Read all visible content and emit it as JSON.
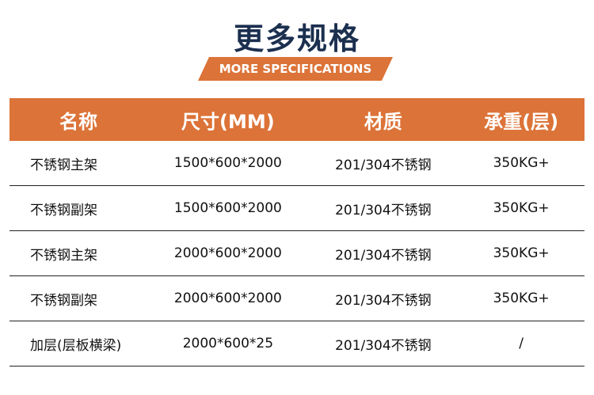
{
  "header": {
    "title": "更多规格",
    "subtitle": "MORE SPECIFICATIONS"
  },
  "table": {
    "columns": [
      "名称",
      "尺寸(MM)",
      "材质",
      "承重(层)"
    ],
    "rows": [
      [
        "不锈钢主架",
        "1500*600*2000",
        "201/304不锈钢",
        "350KG+"
      ],
      [
        "不锈钢副架",
        "1500*600*2000",
        "201/304不锈钢",
        "350KG+"
      ],
      [
        "不锈钢主架",
        "2000*600*2000",
        "201/304不锈钢",
        "350KG+"
      ],
      [
        "不锈钢副架",
        "2000*600*2000",
        "201/304不锈钢",
        "350KG+"
      ],
      [
        "加层(层板横梁)",
        "2000*600*25",
        "201/304不锈钢",
        "/"
      ]
    ]
  }
}
